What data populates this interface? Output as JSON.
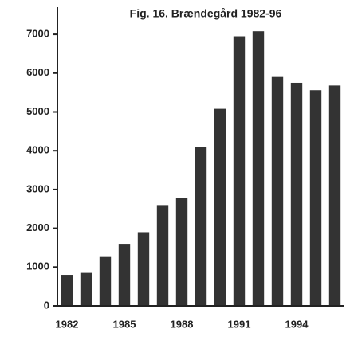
{
  "chart_data": {
    "type": "bar",
    "title": "Fig. 16. Brændegård 1982-96",
    "categories": [
      "1982",
      null,
      null,
      "1985",
      null,
      null,
      "1988",
      null,
      null,
      "1991",
      null,
      null,
      "1994",
      null,
      null
    ],
    "values": [
      800,
      850,
      1280,
      1600,
      1900,
      2600,
      2780,
      4100,
      5080,
      6950,
      7080,
      5900,
      5750,
      5560,
      5680
    ],
    "color": "#333333",
    "ylim": [
      0,
      7700
    ],
    "yticks": [
      0,
      1000,
      2000,
      3000,
      4000,
      5000,
      6000,
      7000
    ],
    "grid": false
  }
}
